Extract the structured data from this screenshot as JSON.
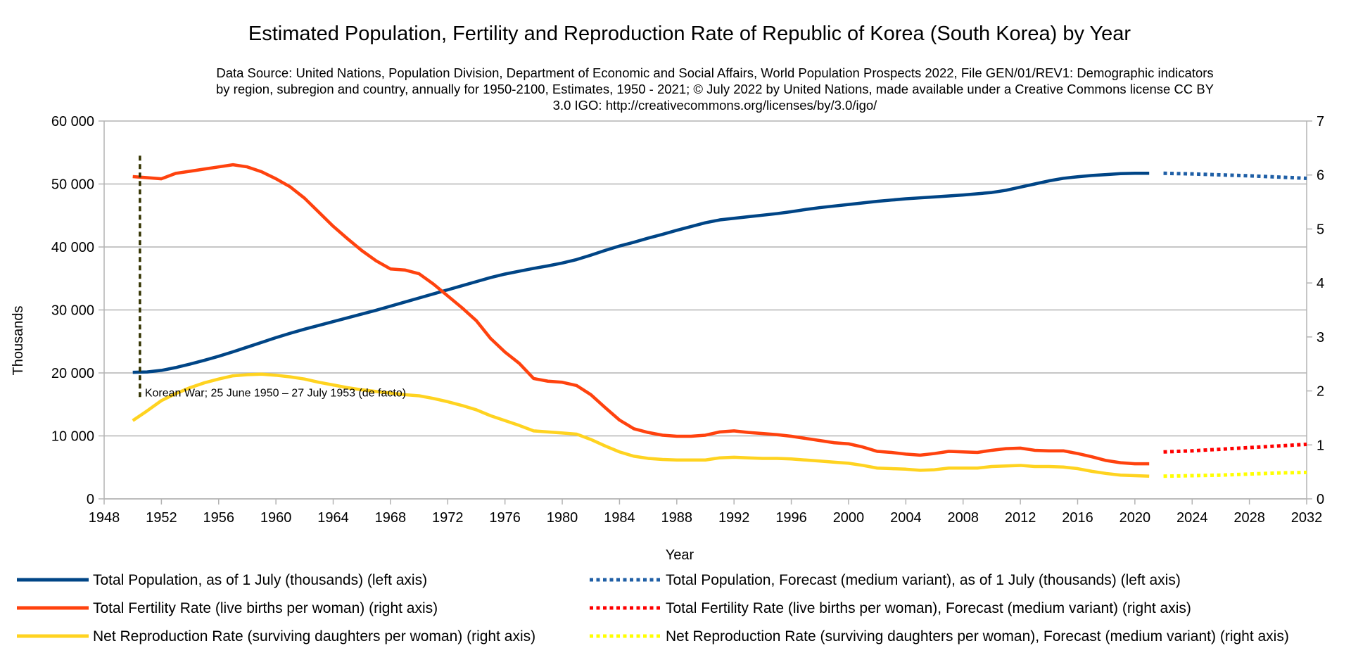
{
  "chart_data": {
    "type": "line",
    "title": "Estimated Population, Fertility and Reproduction Rate of Republic of Korea (South Korea) by Year",
    "source_lines": [
      "Data Source: United Nations, Population Division, Department of Economic and Social Affairs, World Population Prospects 2022, File GEN/01/REV1: Demographic indicators",
      "by region, subregion and country, annually for 1950-2100, Estimates, 1950 - 2021; © July 2022 by United Nations, made available under a Creative Commons license CC BY",
      "3.0 IGO: http://creativecommons.org/licenses/by/3.0/igo/"
    ],
    "xlabel": "Year",
    "ylabel_left": "Thousands",
    "xlim": [
      1948,
      2032
    ],
    "ylim_left": [
      0,
      60000
    ],
    "ylim_right": [
      0,
      7
    ],
    "x_ticks": [
      1948,
      1952,
      1956,
      1960,
      1964,
      1968,
      1972,
      1976,
      1980,
      1984,
      1988,
      1992,
      1996,
      2000,
      2004,
      2008,
      2012,
      2016,
      2020,
      2024,
      2028,
      2032
    ],
    "x_tick_labels": [
      "1948",
      "1952",
      "1956",
      "1960",
      "1964",
      "1968",
      "1972",
      "1976",
      "1980",
      "1984",
      "1988",
      "1992",
      "1996",
      "2000",
      "2004",
      "2008",
      "2012",
      "2016",
      "2020",
      "2024",
      "2028",
      "2032"
    ],
    "y_left_ticks": [
      0,
      10000,
      20000,
      30000,
      40000,
      50000,
      60000
    ],
    "y_left_tick_labels": [
      "0",
      "10 000",
      "20 000",
      "30 000",
      "40 000",
      "50 000",
      "60 000"
    ],
    "y_right_ticks": [
      0,
      1,
      2,
      3,
      4,
      5,
      6,
      7
    ],
    "y_right_tick_labels": [
      "0",
      "1",
      "2",
      "3",
      "4",
      "5",
      "6",
      "7"
    ],
    "grid": "horizontal",
    "legend_position": "bottom",
    "annotation": {
      "text": "Korean War; 25 June 1950 – 27 July 1953 (de facto)",
      "x": 1950.5,
      "y_top": 54500,
      "y_bottom": 15700
    },
    "series": [
      {
        "name": "Total Population, as of 1 July (thousands) (left axis)",
        "axis": "left",
        "color": "#004586",
        "style": "solid",
        "x": [
          1950,
          1951,
          1952,
          1953,
          1954,
          1955,
          1956,
          1957,
          1958,
          1959,
          1960,
          1961,
          1962,
          1963,
          1964,
          1965,
          1966,
          1967,
          1968,
          1969,
          1970,
          1971,
          1972,
          1973,
          1974,
          1975,
          1976,
          1977,
          1978,
          1979,
          1980,
          1981,
          1982,
          1983,
          1984,
          1985,
          1986,
          1987,
          1988,
          1989,
          1990,
          1991,
          1992,
          1993,
          1994,
          1995,
          1996,
          1997,
          1998,
          1999,
          2000,
          2001,
          2002,
          2003,
          2004,
          2005,
          2006,
          2007,
          2008,
          2009,
          2010,
          2011,
          2012,
          2013,
          2014,
          2015,
          2016,
          2017,
          2018,
          2019,
          2020,
          2021
        ],
        "values": [
          20100,
          20150,
          20400,
          20850,
          21400,
          22000,
          22650,
          23350,
          24100,
          24850,
          25600,
          26300,
          26950,
          27550,
          28150,
          28750,
          29350,
          29950,
          30600,
          31250,
          31900,
          32550,
          33200,
          33850,
          34500,
          35150,
          35700,
          36150,
          36600,
          37000,
          37450,
          38000,
          38700,
          39450,
          40150,
          40750,
          41400,
          42000,
          42650,
          43250,
          43850,
          44300,
          44550,
          44800,
          45050,
          45300,
          45600,
          45950,
          46250,
          46500,
          46750,
          47000,
          47250,
          47450,
          47650,
          47800,
          47950,
          48100,
          48250,
          48450,
          48650,
          49000,
          49500,
          50000,
          50500,
          50900,
          51150,
          51350,
          51500,
          51650,
          51700,
          51700
        ]
      },
      {
        "name": "Total Fertility Rate (live births per woman) (right axis)",
        "axis": "right",
        "color": "#ff420e",
        "style": "solid",
        "x": [
          1950,
          1951,
          1952,
          1953,
          1954,
          1955,
          1956,
          1957,
          1958,
          1959,
          1960,
          1961,
          1962,
          1963,
          1964,
          1965,
          1966,
          1967,
          1968,
          1969,
          1970,
          1971,
          1972,
          1973,
          1974,
          1975,
          1976,
          1977,
          1978,
          1979,
          1980,
          1981,
          1982,
          1983,
          1984,
          1985,
          1986,
          1987,
          1988,
          1989,
          1990,
          1991,
          1992,
          1993,
          1994,
          1995,
          1996,
          1997,
          1998,
          1999,
          2000,
          2001,
          2002,
          2003,
          2004,
          2005,
          2006,
          2007,
          2008,
          2009,
          2010,
          2011,
          2012,
          2013,
          2014,
          2015,
          2016,
          2017,
          2018,
          2019,
          2020,
          2021
        ],
        "values": [
          5.97,
          5.95,
          5.93,
          6.03,
          6.07,
          6.11,
          6.15,
          6.19,
          6.15,
          6.06,
          5.93,
          5.78,
          5.57,
          5.31,
          5.05,
          4.82,
          4.6,
          4.41,
          4.26,
          4.24,
          4.17,
          3.98,
          3.76,
          3.54,
          3.3,
          2.97,
          2.72,
          2.51,
          2.23,
          2.18,
          2.16,
          2.1,
          1.93,
          1.69,
          1.46,
          1.3,
          1.23,
          1.18,
          1.16,
          1.16,
          1.18,
          1.24,
          1.26,
          1.23,
          1.21,
          1.19,
          1.16,
          1.12,
          1.08,
          1.04,
          1.02,
          0.96,
          0.88,
          0.86,
          0.83,
          0.81,
          0.84,
          0.88,
          0.87,
          0.86,
          0.9,
          0.93,
          0.94,
          0.9,
          0.89,
          0.89,
          0.84,
          0.78,
          0.71,
          0.67,
          0.65,
          0.65
        ]
      },
      {
        "name": "Net Reproduction Rate (surviving daughters per woman) (right axis)",
        "axis": "right",
        "color": "#ffd320",
        "style": "solid",
        "x": [
          1950,
          1951,
          1952,
          1953,
          1954,
          1955,
          1956,
          1957,
          1958,
          1959,
          1960,
          1961,
          1962,
          1963,
          1964,
          1965,
          1966,
          1967,
          1968,
          1969,
          1970,
          1971,
          1972,
          1973,
          1974,
          1975,
          1976,
          1977,
          1978,
          1979,
          1980,
          1981,
          1982,
          1983,
          1984,
          1985,
          1986,
          1987,
          1988,
          1989,
          1990,
          1991,
          1992,
          1993,
          1994,
          1995,
          1996,
          1997,
          1998,
          1999,
          2000,
          2001,
          2002,
          2003,
          2004,
          2005,
          2006,
          2007,
          2008,
          2009,
          2010,
          2011,
          2012,
          2013,
          2014,
          2015,
          2016,
          2017,
          2018,
          2019,
          2020,
          2021
        ],
        "values": [
          1.45,
          1.63,
          1.82,
          1.95,
          2.06,
          2.15,
          2.22,
          2.28,
          2.3,
          2.31,
          2.29,
          2.26,
          2.22,
          2.16,
          2.11,
          2.06,
          2.02,
          1.99,
          1.96,
          1.93,
          1.91,
          1.86,
          1.8,
          1.73,
          1.65,
          1.54,
          1.45,
          1.36,
          1.26,
          1.24,
          1.22,
          1.2,
          1.1,
          0.98,
          0.87,
          0.79,
          0.75,
          0.73,
          0.72,
          0.72,
          0.72,
          0.76,
          0.77,
          0.76,
          0.75,
          0.75,
          0.74,
          0.72,
          0.7,
          0.68,
          0.66,
          0.62,
          0.57,
          0.56,
          0.55,
          0.53,
          0.54,
          0.57,
          0.57,
          0.57,
          0.6,
          0.61,
          0.62,
          0.6,
          0.6,
          0.59,
          0.56,
          0.51,
          0.47,
          0.44,
          0.43,
          0.42
        ]
      },
      {
        "name": "Total Population, Forecast (medium variant), as of 1 July (thousands) (left axis)",
        "axis": "left",
        "color": "#1f5fa6",
        "style": "dotted",
        "x": [
          2022,
          2024,
          2026,
          2028,
          2030,
          2032
        ],
        "values": [
          51700,
          51600,
          51450,
          51300,
          51100,
          50900
        ]
      },
      {
        "name": "Total Fertility Rate (live births per woman), Forecast (medium variant) (right axis)",
        "axis": "right",
        "color": "#ff0000",
        "style": "dotted",
        "x": [
          2022,
          2024,
          2026,
          2028,
          2030,
          2032
        ],
        "values": [
          0.87,
          0.89,
          0.92,
          0.95,
          0.98,
          1.01
        ]
      },
      {
        "name": "Net Reproduction Rate (surviving daughters per woman), Forecast (medium variant) (right axis)",
        "axis": "right",
        "color": "#ffff00",
        "style": "dotted",
        "x": [
          2022,
          2024,
          2026,
          2028,
          2030,
          2032
        ],
        "values": [
          0.42,
          0.43,
          0.44,
          0.46,
          0.48,
          0.49
        ]
      }
    ]
  }
}
